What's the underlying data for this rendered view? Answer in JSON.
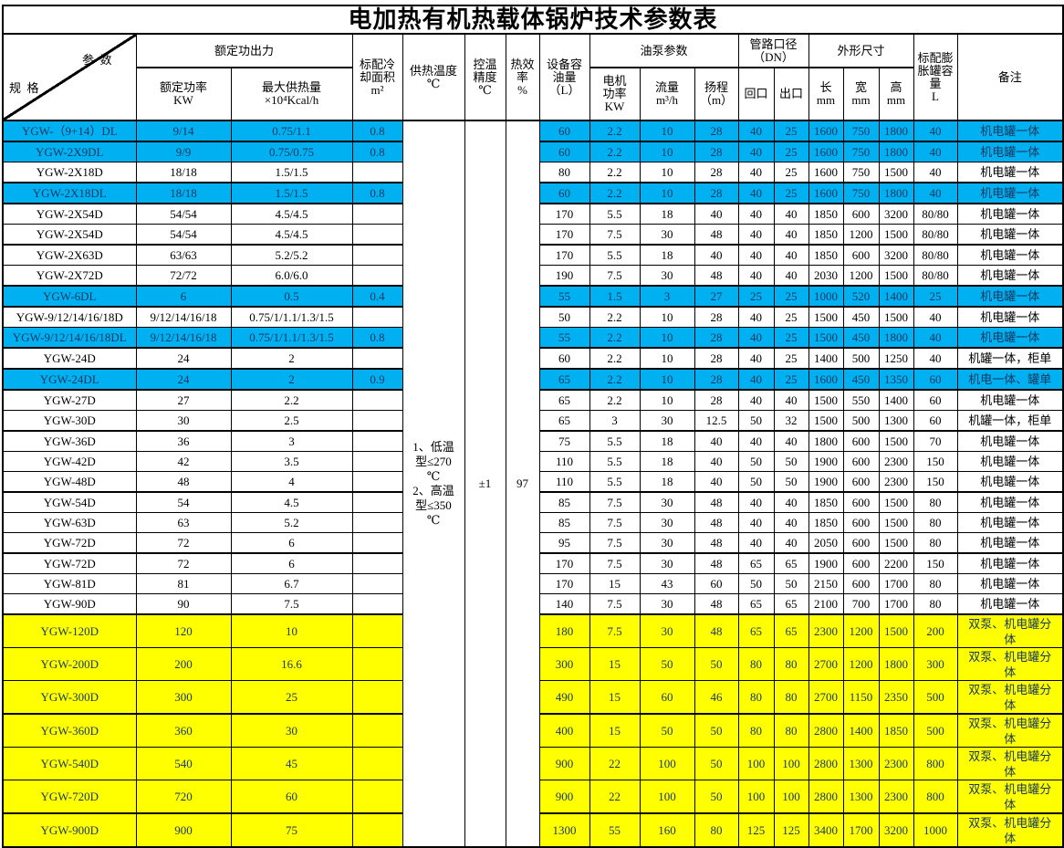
{
  "title": "电加热有机热载体锅炉技术参数表",
  "colors": {
    "cyan_row_bg": "#00B0F0",
    "yellow_row_bg": "#FFFF00",
    "colored_row_text": "#17375E",
    "border": "#000000"
  },
  "header": {
    "corner_top": "参  数",
    "corner_bottom": "规  格",
    "groups": {
      "rated_output": "额定功出力",
      "pump_params": "油泵参数",
      "pipe_diameter": "管路口径\n（DN）",
      "dimensions": "外形尺寸"
    },
    "cols": {
      "rated_power": "额定功率\nKW",
      "max_heat": "最大供热量\n×10⁴Kcal/h",
      "cooling_area": "标配冷\n却面积\nm²",
      "supply_temp": "供热温度\n℃",
      "temp_precision": "控温\n精度\n℃",
      "efficiency": "热效\n率\n%",
      "oil_capacity": "设备容\n油量\n（L）",
      "motor_power": "电机\n功率\nKW",
      "flow": "流量\nm³/h",
      "lift": "扬程\n（m）",
      "inlet": "回口",
      "outlet": "出口",
      "length": "长\nmm",
      "width": "宽\nmm",
      "height": "高\nmm",
      "expansion_tank": "标配膨\n胀罐容\n量\nL",
      "remark": "备注"
    }
  },
  "merged_cells": {
    "supply_temp": "1、低温\n型≤270\n℃\n2、高温\n型≤350\n℃",
    "temp_precision": "±1",
    "efficiency": "97"
  },
  "rows": [
    {
      "model": "YGW-（9+14）DL",
      "rated_power": "9/14",
      "max_heat": "0.75/1.1",
      "cooling_area": "0.8",
      "oil": "60",
      "motor": "2.2",
      "flow": "10",
      "lift": "28",
      "inlet": "40",
      "outlet": "25",
      "len": "1600",
      "wid": "750",
      "hgt": "1800",
      "tank": "40",
      "remark": "机电罐一体",
      "color": "cyan",
      "thick_bottom": true
    },
    {
      "model": "YGW-2X9DL",
      "rated_power": "9/9",
      "max_heat": "0.75/0.75",
      "cooling_area": "0.8",
      "oil": "60",
      "motor": "2.2",
      "flow": "10",
      "lift": "28",
      "inlet": "40",
      "outlet": "25",
      "len": "1600",
      "wid": "750",
      "hgt": "1800",
      "tank": "40",
      "remark": "机电罐一体",
      "color": "cyan",
      "thick_bottom": false
    },
    {
      "model": "YGW-2X18D",
      "rated_power": "18/18",
      "max_heat": "1.5/1.5",
      "cooling_area": "",
      "oil": "80",
      "motor": "2.2",
      "flow": "10",
      "lift": "28",
      "inlet": "40",
      "outlet": "25",
      "len": "1600",
      "wid": "750",
      "hgt": "1500",
      "tank": "40",
      "remark": "机电罐一体",
      "color": "white",
      "thick_bottom": true
    },
    {
      "model": "YGW-2X18DL",
      "rated_power": "18/18",
      "max_heat": "1.5/1.5",
      "cooling_area": "0.8",
      "oil": "60",
      "motor": "2.2",
      "flow": "10",
      "lift": "28",
      "inlet": "40",
      "outlet": "25",
      "len": "1600",
      "wid": "750",
      "hgt": "1800",
      "tank": "40",
      "remark": "机电罐一体",
      "color": "cyan",
      "thick_bottom": true
    },
    {
      "model": "YGW-2X54D",
      "rated_power": "54/54",
      "max_heat": "4.5/4.5",
      "cooling_area": "",
      "oil": "170",
      "motor": "5.5",
      "flow": "18",
      "lift": "40",
      "inlet": "40",
      "outlet": "40",
      "len": "1850",
      "wid": "600",
      "hgt": "3200",
      "tank": "80/80",
      "remark": "机电罐一体",
      "color": "white",
      "thick_bottom": false
    },
    {
      "model": "YGW-2X54D",
      "rated_power": "54/54",
      "max_heat": "4.5/4.5",
      "cooling_area": "",
      "oil": "170",
      "motor": "7.5",
      "flow": "30",
      "lift": "48",
      "inlet": "40",
      "outlet": "40",
      "len": "1850",
      "wid": "1200",
      "hgt": "1500",
      "tank": "80/80",
      "remark": "机电罐一体",
      "color": "white",
      "thick_bottom": true
    },
    {
      "model": "YGW-2X63D",
      "rated_power": "63/63",
      "max_heat": "5.2/5.2",
      "cooling_area": "",
      "oil": "170",
      "motor": "5.5",
      "flow": "18",
      "lift": "40",
      "inlet": "40",
      "outlet": "40",
      "len": "1850",
      "wid": "600",
      "hgt": "3200",
      "tank": "80/80",
      "remark": "机电罐一体",
      "color": "white",
      "thick_bottom": false
    },
    {
      "model": "YGW-2X72D",
      "rated_power": "72/72",
      "max_heat": "6.0/6.0",
      "cooling_area": "",
      "oil": "190",
      "motor": "7.5",
      "flow": "30",
      "lift": "48",
      "inlet": "40",
      "outlet": "40",
      "len": "2030",
      "wid": "1200",
      "hgt": "1500",
      "tank": "80/80",
      "remark": "机电罐一体",
      "color": "white",
      "thick_bottom": true
    },
    {
      "model": "YGW-6DL",
      "rated_power": "6",
      "max_heat": "0.5",
      "cooling_area": "0.4",
      "oil": "55",
      "motor": "1.5",
      "flow": "3",
      "lift": "27",
      "inlet": "25",
      "outlet": "25",
      "len": "1000",
      "wid": "520",
      "hgt": "1400",
      "tank": "25",
      "remark": "机电罐一体",
      "color": "cyan",
      "thick_bottom": true
    },
    {
      "model": "YGW-9/12/14/16/18D",
      "rated_power": "9/12/14/16/18",
      "max_heat": "0.75/1/1.1/1.3/1.5",
      "cooling_area": "",
      "oil": "50",
      "motor": "2.2",
      "flow": "10",
      "lift": "28",
      "inlet": "40",
      "outlet": "25",
      "len": "1500",
      "wid": "450",
      "hgt": "1500",
      "tank": "40",
      "remark": "机电罐一体",
      "color": "white",
      "thick_bottom": false
    },
    {
      "model": "YGW-9/12/14/16/18DL",
      "rated_power": "9/12/14/16/18",
      "max_heat": "0.75/1/1.1/1.3/1.5",
      "cooling_area": "0.8",
      "oil": "55",
      "motor": "2.2",
      "flow": "10",
      "lift": "28",
      "inlet": "40",
      "outlet": "25",
      "len": "1500",
      "wid": "450",
      "hgt": "1800",
      "tank": "40",
      "remark": "机电罐一体",
      "color": "cyan",
      "thick_bottom": true
    },
    {
      "model": "YGW-24D",
      "rated_power": "24",
      "max_heat": "2",
      "cooling_area": "",
      "oil": "60",
      "motor": "2.2",
      "flow": "10",
      "lift": "28",
      "inlet": "40",
      "outlet": "25",
      "len": "1400",
      "wid": "500",
      "hgt": "1250",
      "tank": "40",
      "remark": "机罐一体，柜单",
      "color": "white",
      "thick_bottom": true
    },
    {
      "model": "YGW-24DL",
      "rated_power": "24",
      "max_heat": "2",
      "cooling_area": "0.9",
      "oil": "65",
      "motor": "2.2",
      "flow": "10",
      "lift": "28",
      "inlet": "40",
      "outlet": "25",
      "len": "1600",
      "wid": "450",
      "hgt": "1350",
      "tank": "60",
      "remark": "机电一体、罐单",
      "color": "cyan",
      "thick_bottom": true
    },
    {
      "model": "YGW-27D",
      "rated_power": "27",
      "max_heat": "2.2",
      "cooling_area": "",
      "oil": "65",
      "motor": "2.2",
      "flow": "10",
      "lift": "28",
      "inlet": "40",
      "outlet": "40",
      "len": "1500",
      "wid": "550",
      "hgt": "1400",
      "tank": "60",
      "remark": "机电罐一体",
      "color": "white",
      "thick_bottom": false
    },
    {
      "model": "YGW-30D",
      "rated_power": "30",
      "max_heat": "2.5",
      "cooling_area": "",
      "oil": "65",
      "motor": "3",
      "flow": "30",
      "lift": "12.5",
      "inlet": "50",
      "outlet": "32",
      "len": "1500",
      "wid": "500",
      "hgt": "1300",
      "tank": "60",
      "remark": "机罐一体，柜单",
      "color": "white",
      "thick_bottom": true
    },
    {
      "model": "YGW-36D",
      "rated_power": "36",
      "max_heat": "3",
      "cooling_area": "",
      "oil": "75",
      "motor": "5.5",
      "flow": "18",
      "lift": "40",
      "inlet": "40",
      "outlet": "40",
      "len": "1800",
      "wid": "600",
      "hgt": "1500",
      "tank": "70",
      "remark": "机电罐一体",
      "color": "white",
      "thick_bottom": false
    },
    {
      "model": "YGW-42D",
      "rated_power": "42",
      "max_heat": "3.5",
      "cooling_area": "",
      "oil": "110",
      "motor": "5.5",
      "flow": "18",
      "lift": "40",
      "inlet": "50",
      "outlet": "50",
      "len": "1900",
      "wid": "600",
      "hgt": "2300",
      "tank": "150",
      "remark": "机电罐一体",
      "color": "white",
      "thick_bottom": false
    },
    {
      "model": "YGW-48D",
      "rated_power": "48",
      "max_heat": "4",
      "cooling_area": "",
      "oil": "110",
      "motor": "5.5",
      "flow": "18",
      "lift": "40",
      "inlet": "50",
      "outlet": "50",
      "len": "1900",
      "wid": "600",
      "hgt": "2300",
      "tank": "150",
      "remark": "机电罐一体",
      "color": "white",
      "thick_bottom": true
    },
    {
      "model": "YGW-54D",
      "rated_power": "54",
      "max_heat": "4.5",
      "cooling_area": "",
      "oil": "85",
      "motor": "7.5",
      "flow": "30",
      "lift": "48",
      "inlet": "40",
      "outlet": "40",
      "len": "1850",
      "wid": "600",
      "hgt": "1500",
      "tank": "80",
      "remark": "机电罐一体",
      "color": "white",
      "thick_bottom": false
    },
    {
      "model": "YGW-63D",
      "rated_power": "63",
      "max_heat": "5.2",
      "cooling_area": "",
      "oil": "85",
      "motor": "7.5",
      "flow": "30",
      "lift": "48",
      "inlet": "40",
      "outlet": "40",
      "len": "1850",
      "wid": "600",
      "hgt": "1500",
      "tank": "80",
      "remark": "机电罐一体",
      "color": "white",
      "thick_bottom": false
    },
    {
      "model": "YGW-72D",
      "rated_power": "72",
      "max_heat": "6",
      "cooling_area": "",
      "oil": "95",
      "motor": "7.5",
      "flow": "30",
      "lift": "48",
      "inlet": "40",
      "outlet": "40",
      "len": "2050",
      "wid": "600",
      "hgt": "1500",
      "tank": "80",
      "remark": "机电罐一体",
      "color": "white",
      "thick_bottom": true
    },
    {
      "model": "YGW-72D",
      "rated_power": "72",
      "max_heat": "6",
      "cooling_area": "",
      "oil": "170",
      "motor": "7.5",
      "flow": "30",
      "lift": "48",
      "inlet": "65",
      "outlet": "65",
      "len": "1900",
      "wid": "600",
      "hgt": "2200",
      "tank": "150",
      "remark": "机电罐一体",
      "color": "white",
      "thick_bottom": false
    },
    {
      "model": "YGW-81D",
      "rated_power": "81",
      "max_heat": "6.7",
      "cooling_area": "",
      "oil": "170",
      "motor": "15",
      "flow": "43",
      "lift": "60",
      "inlet": "50",
      "outlet": "50",
      "len": "2150",
      "wid": "600",
      "hgt": "1700",
      "tank": "80",
      "remark": "机电罐一体",
      "color": "white",
      "thick_bottom": false
    },
    {
      "model": "YGW-90D",
      "rated_power": "90",
      "max_heat": "7.5",
      "cooling_area": "",
      "oil": "140",
      "motor": "7.5",
      "flow": "30",
      "lift": "48",
      "inlet": "65",
      "outlet": "65",
      "len": "2100",
      "wid": "700",
      "hgt": "1700",
      "tank": "80",
      "remark": "机电罐一体",
      "color": "white",
      "thick_bottom": true
    },
    {
      "model": "YGW-120D",
      "rated_power": "120",
      "max_heat": "10",
      "cooling_area": "",
      "oil": "180",
      "motor": "7.5",
      "flow": "30",
      "lift": "48",
      "inlet": "65",
      "outlet": "65",
      "len": "2300",
      "wid": "1200",
      "hgt": "1500",
      "tank": "200",
      "remark": "双泵、机电罐分\n体",
      "color": "yellow",
      "thick_bottom": false
    },
    {
      "model": "YGW-200D",
      "rated_power": "200",
      "max_heat": "16.6",
      "cooling_area": "",
      "oil": "300",
      "motor": "15",
      "flow": "50",
      "lift": "50",
      "inlet": "80",
      "outlet": "80",
      "len": "2700",
      "wid": "1200",
      "hgt": "1800",
      "tank": "300",
      "remark": "双泵、机电罐分\n体",
      "color": "yellow",
      "thick_bottom": false
    },
    {
      "model": "YGW-300D",
      "rated_power": "300",
      "max_heat": "25",
      "cooling_area": "",
      "oil": "490",
      "motor": "15",
      "flow": "60",
      "lift": "46",
      "inlet": "80",
      "outlet": "80",
      "len": "2700",
      "wid": "1150",
      "hgt": "2350",
      "tank": "500",
      "remark": "双泵、机电罐分\n体",
      "color": "yellow",
      "thick_bottom": true
    },
    {
      "model": "YGW-360D",
      "rated_power": "360",
      "max_heat": "30",
      "cooling_area": "",
      "oil": "400",
      "motor": "15",
      "flow": "50",
      "lift": "50",
      "inlet": "80",
      "outlet": "80",
      "len": "2800",
      "wid": "1400",
      "hgt": "1850",
      "tank": "500",
      "remark": "双泵、机电罐分\n体",
      "color": "yellow",
      "thick_bottom": false
    },
    {
      "model": "YGW-540D",
      "rated_power": "540",
      "max_heat": "45",
      "cooling_area": "",
      "oil": "900",
      "motor": "22",
      "flow": "100",
      "lift": "50",
      "inlet": "100",
      "outlet": "100",
      "len": "2800",
      "wid": "1300",
      "hgt": "2300",
      "tank": "800",
      "remark": "双泵、机电罐分\n体",
      "color": "yellow",
      "thick_bottom": false
    },
    {
      "model": "YGW-720D",
      "rated_power": "720",
      "max_heat": "60",
      "cooling_area": "",
      "oil": "900",
      "motor": "22",
      "flow": "100",
      "lift": "50",
      "inlet": "100",
      "outlet": "100",
      "len": "2800",
      "wid": "1300",
      "hgt": "2300",
      "tank": "800",
      "remark": "双泵、机电罐分\n体",
      "color": "yellow",
      "thick_bottom": true
    },
    {
      "model": "YGW-900D",
      "rated_power": "900",
      "max_heat": "75",
      "cooling_area": "",
      "oil": "1300",
      "motor": "55",
      "flow": "160",
      "lift": "80",
      "inlet": "125",
      "outlet": "125",
      "len": "3400",
      "wid": "1700",
      "hgt": "3200",
      "tank": "1000",
      "remark": "双泵、机电罐分\n体",
      "color": "yellow",
      "thick_bottom": true
    }
  ]
}
